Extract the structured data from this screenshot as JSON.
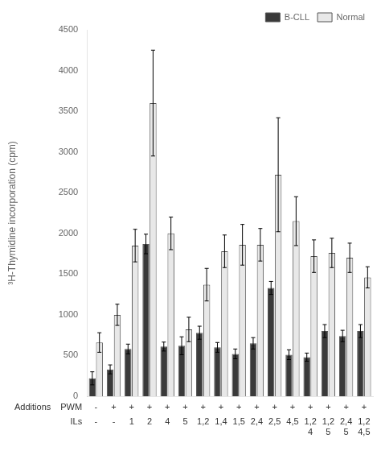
{
  "chart_data": {
    "type": "bar",
    "categories": [
      [
        "-",
        "-"
      ],
      [
        "+",
        "-"
      ],
      [
        "+",
        "1"
      ],
      [
        "+",
        "2"
      ],
      [
        "+",
        "4"
      ],
      [
        "+",
        "5"
      ],
      [
        "+",
        "1,2"
      ],
      [
        "+",
        "1,4"
      ],
      [
        "+",
        "1,5"
      ],
      [
        "+",
        "2,4"
      ],
      [
        "+",
        "2,5"
      ],
      [
        "+",
        "4,5"
      ],
      [
        "+",
        "1,2\n4"
      ],
      [
        "+",
        "1,2\n5"
      ],
      [
        "+",
        "2,4\n5"
      ],
      [
        "+",
        "1,2\n4,5"
      ]
    ],
    "series": [
      {
        "name": "B-CLL",
        "color": "#3a3a3a",
        "values": [
          220,
          330,
          580,
          1870,
          610,
          620,
          780,
          600,
          520,
          650,
          1330,
          510,
          480,
          800,
          740,
          800
        ],
        "errors": [
          80,
          55,
          60,
          120,
          55,
          110,
          80,
          60,
          60,
          70,
          80,
          60,
          50,
          80,
          70,
          80
        ]
      },
      {
        "name": "Normal",
        "color": "#e8e8e8",
        "values": [
          660,
          1000,
          1850,
          3600,
          2000,
          820,
          1370,
          1780,
          1860,
          1860,
          2720,
          2150,
          1720,
          1760,
          1700,
          1460
        ],
        "errors": [
          120,
          130,
          200,
          650,
          200,
          150,
          200,
          200,
          250,
          200,
          700,
          300,
          200,
          180,
          180,
          130
        ]
      }
    ],
    "ylabel": "³H-Thymidine incorporation (cpm)",
    "ylim": [
      0,
      4500
    ],
    "yticks": [
      0,
      500,
      1000,
      1500,
      2000,
      2500,
      3000,
      3500,
      4000,
      4500
    ],
    "annotations": [
      "Additions",
      "PWM",
      "ILs"
    ],
    "legend": "upper right",
    "grid": false
  }
}
